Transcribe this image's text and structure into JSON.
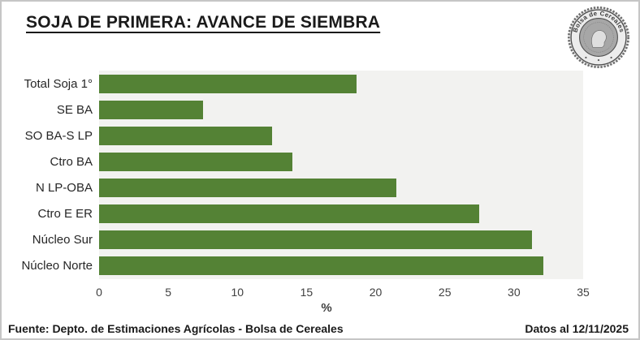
{
  "title": "SOJA DE PRIMERA: AVANCE DE SIEMBRA",
  "logo": {
    "label": "Bolsa de Cereales"
  },
  "chart_data": {
    "type": "bar",
    "orientation": "horizontal",
    "title": "SOJA DE PRIMERA: AVANCE DE SIEMBRA",
    "categories": [
      "Total Soja 1°",
      "SE BA",
      "SO BA-S LP",
      "Ctro BA",
      "N LP-OBA",
      "Ctro E ER",
      "Núcleo Sur",
      "Núcleo Norte"
    ],
    "values": [
      18.6,
      7.5,
      12.5,
      14.0,
      21.5,
      27.5,
      31.3,
      32.1
    ],
    "xlabel": "%",
    "ylabel": "",
    "xlim": [
      0,
      35
    ],
    "xticks": [
      0,
      5,
      10,
      15,
      20,
      25,
      30,
      35
    ],
    "grid": false,
    "legend": false,
    "bar_color": "#548235",
    "plot_bg": "#f2f2f0"
  },
  "footer": {
    "source": "Fuente: Depto. de Estimaciones Agrícolas - Bolsa de Cereales",
    "date_note": "Datos al 12/11/2025"
  }
}
